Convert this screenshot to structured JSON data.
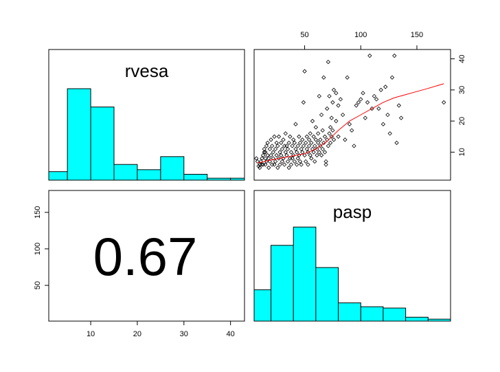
{
  "chart_data": [
    {
      "type": "histogram",
      "panel": "top-left",
      "title": "rvesa",
      "x_range": [
        1,
        43
      ],
      "bins": [
        {
          "from": 0,
          "to": 5,
          "height": 0.065
        },
        {
          "from": 5,
          "to": 10,
          "height": 0.7
        },
        {
          "from": 10,
          "to": 15,
          "height": 0.56
        },
        {
          "from": 15,
          "to": 20,
          "height": 0.12
        },
        {
          "from": 20,
          "to": 25,
          "height": 0.08
        },
        {
          "from": 25,
          "to": 30,
          "height": 0.18
        },
        {
          "from": 30,
          "to": 35,
          "height": 0.045
        },
        {
          "from": 35,
          "to": 40,
          "height": 0.015
        },
        {
          "from": 40,
          "to": 45,
          "height": 0.015
        }
      ]
    },
    {
      "type": "scatter",
      "panel": "top-right",
      "x_label": "pasp",
      "y_label": "rvesa",
      "xlim": [
        5,
        180
      ],
      "ylim": [
        1,
        43
      ],
      "x_ticks": [
        "50",
        "100",
        "150"
      ],
      "y_ticks": [
        "10",
        "20",
        "30",
        "40"
      ],
      "points": [
        [
          8,
          7
        ],
        [
          9,
          5.5
        ],
        [
          10,
          6
        ],
        [
          11,
          7
        ],
        [
          12,
          6
        ],
        [
          12,
          8
        ],
        [
          13,
          9
        ],
        [
          13,
          6
        ],
        [
          14,
          10
        ],
        [
          14,
          11
        ],
        [
          15,
          8
        ],
        [
          15,
          6
        ],
        [
          16,
          12
        ],
        [
          16,
          7
        ],
        [
          17,
          13
        ],
        [
          17,
          9
        ],
        [
          18,
          8
        ],
        [
          18,
          5
        ],
        [
          19,
          11
        ],
        [
          19,
          7
        ],
        [
          20,
          14
        ],
        [
          20,
          9
        ],
        [
          21,
          6
        ],
        [
          21,
          12
        ],
        [
          22,
          10
        ],
        [
          22,
          8
        ],
        [
          23,
          15
        ],
        [
          23,
          6
        ],
        [
          24,
          11
        ],
        [
          24,
          7
        ],
        [
          25,
          9
        ],
        [
          25,
          13
        ],
        [
          26,
          12
        ],
        [
          26,
          5
        ],
        [
          27,
          8
        ],
        [
          27,
          15
        ],
        [
          28,
          10
        ],
        [
          28,
          6
        ],
        [
          29,
          13
        ],
        [
          29,
          9
        ],
        [
          30,
          11
        ],
        [
          30,
          7
        ],
        [
          31,
          14
        ],
        [
          31,
          8
        ],
        [
          32,
          12
        ],
        [
          32,
          6
        ],
        [
          33,
          10
        ],
        [
          33,
          16
        ],
        [
          34,
          9
        ],
        [
          34,
          12
        ],
        [
          35,
          7
        ],
        [
          35,
          11
        ],
        [
          36,
          13
        ],
        [
          36,
          5
        ],
        [
          37,
          8
        ],
        [
          37,
          15
        ],
        [
          38,
          10
        ],
        [
          38,
          6
        ],
        [
          39,
          12
        ],
        [
          39,
          8
        ],
        [
          40,
          14
        ],
        [
          40,
          9
        ],
        [
          41,
          7
        ],
        [
          41,
          13
        ],
        [
          42,
          11
        ],
        [
          42,
          19
        ],
        [
          43,
          10
        ],
        [
          43,
          6
        ],
        [
          44,
          12
        ],
        [
          44,
          8
        ],
        [
          45,
          15
        ],
        [
          45,
          9
        ],
        [
          46,
          13
        ],
        [
          46,
          7
        ],
        [
          47,
          11
        ],
        [
          47,
          6
        ],
        [
          48,
          14
        ],
        [
          48,
          10
        ],
        [
          49,
          12
        ],
        [
          49,
          26
        ],
        [
          50,
          9
        ],
        [
          50,
          36
        ],
        [
          51,
          13
        ],
        [
          51,
          7
        ],
        [
          52,
          15
        ],
        [
          52,
          11
        ],
        [
          53,
          10
        ],
        [
          53,
          6
        ],
        [
          54,
          14
        ],
        [
          54,
          12
        ],
        [
          55,
          9
        ],
        [
          55,
          16
        ],
        [
          56,
          13
        ],
        [
          56,
          8
        ],
        [
          57,
          20
        ],
        [
          57,
          11
        ],
        [
          58,
          15
        ],
        [
          58,
          10
        ],
        [
          59,
          12
        ],
        [
          59,
          7
        ],
        [
          60,
          18
        ],
        [
          60,
          14
        ],
        [
          61,
          11
        ],
        [
          61,
          9
        ],
        [
          62,
          16
        ],
        [
          62,
          13
        ],
        [
          63,
          10
        ],
        [
          63,
          28
        ],
        [
          64,
          14
        ],
        [
          64,
          12
        ],
        [
          65,
          22
        ],
        [
          65,
          9
        ],
        [
          66,
          17
        ],
        [
          66,
          11
        ],
        [
          67,
          13
        ],
        [
          67,
          34
        ],
        [
          68,
          15
        ],
        [
          68,
          10
        ],
        [
          69,
          7
        ],
        [
          69,
          6
        ],
        [
          70,
          24
        ],
        [
          70,
          14
        ],
        [
          71,
          12
        ],
        [
          71,
          39
        ],
        [
          72,
          16
        ],
        [
          72,
          28
        ],
        [
          73,
          18
        ],
        [
          73,
          13
        ],
        [
          74,
          21
        ],
        [
          74,
          15
        ],
        [
          75,
          26
        ],
        [
          75,
          17
        ],
        [
          76,
          30
        ],
        [
          76,
          14
        ],
        [
          78,
          20
        ],
        [
          78,
          29
        ],
        [
          80,
          25
        ],
        [
          80,
          15
        ],
        [
          82,
          27
        ],
        [
          84,
          22
        ],
        [
          86,
          14
        ],
        [
          88,
          34
        ],
        [
          90,
          19
        ],
        [
          92,
          17
        ],
        [
          94,
          12
        ],
        [
          96,
          25
        ],
        [
          98,
          26
        ],
        [
          100,
          27
        ],
        [
          102,
          29
        ],
        [
          104,
          21
        ],
        [
          106,
          26
        ],
        [
          108,
          41
        ],
        [
          110,
          24
        ],
        [
          112,
          28
        ],
        [
          114,
          27
        ],
        [
          116,
          24
        ],
        [
          118,
          30
        ],
        [
          120,
          19
        ],
        [
          122,
          31
        ],
        [
          124,
          22
        ],
        [
          126,
          16
        ],
        [
          128,
          34
        ],
        [
          130,
          41
        ],
        [
          132,
          13
        ],
        [
          134,
          25
        ],
        [
          136,
          21
        ],
        [
          174,
          26
        ],
        [
          7,
          8
        ],
        [
          10,
          5
        ],
        [
          15,
          10
        ]
      ],
      "smooth_line": [
        [
          8,
          6.5
        ],
        [
          20,
          7.5
        ],
        [
          35,
          8.5
        ],
        [
          50,
          9.5
        ],
        [
          60,
          11
        ],
        [
          70,
          13.5
        ],
        [
          80,
          17
        ],
        [
          90,
          20
        ],
        [
          100,
          22
        ],
        [
          110,
          24
        ],
        [
          120,
          26
        ],
        [
          130,
          27.5
        ],
        [
          140,
          28.5
        ],
        [
          150,
          29.5
        ],
        [
          160,
          30.5
        ],
        [
          174,
          32
        ]
      ]
    },
    {
      "type": "text",
      "panel": "bottom-left",
      "value": "0.67",
      "x_range": [
        1,
        43
      ],
      "y_range": [
        1,
        180
      ],
      "x_ticks": [
        "10",
        "20",
        "30",
        "40"
      ],
      "y_ticks": [
        "50",
        "100",
        "150"
      ]
    },
    {
      "type": "histogram",
      "panel": "bottom-right",
      "title": "pasp",
      "x_range": [
        5,
        180
      ],
      "bins": [
        {
          "from": 0,
          "to": 20,
          "height": 0.24
        },
        {
          "from": 20,
          "to": 40,
          "height": 0.58
        },
        {
          "from": 40,
          "to": 60,
          "height": 0.72
        },
        {
          "from": 60,
          "to": 80,
          "height": 0.41
        },
        {
          "from": 80,
          "to": 100,
          "height": 0.14
        },
        {
          "from": 100,
          "to": 120,
          "height": 0.11
        },
        {
          "from": 120,
          "to": 140,
          "height": 0.1
        },
        {
          "from": 140,
          "to": 160,
          "height": 0.03
        },
        {
          "from": 160,
          "to": 180,
          "height": 0.015
        }
      ]
    }
  ],
  "colors": {
    "bar_fill": "#00ffff",
    "bar_stroke": "#000000",
    "smooth_line": "#ff0000",
    "points": "#000000"
  }
}
